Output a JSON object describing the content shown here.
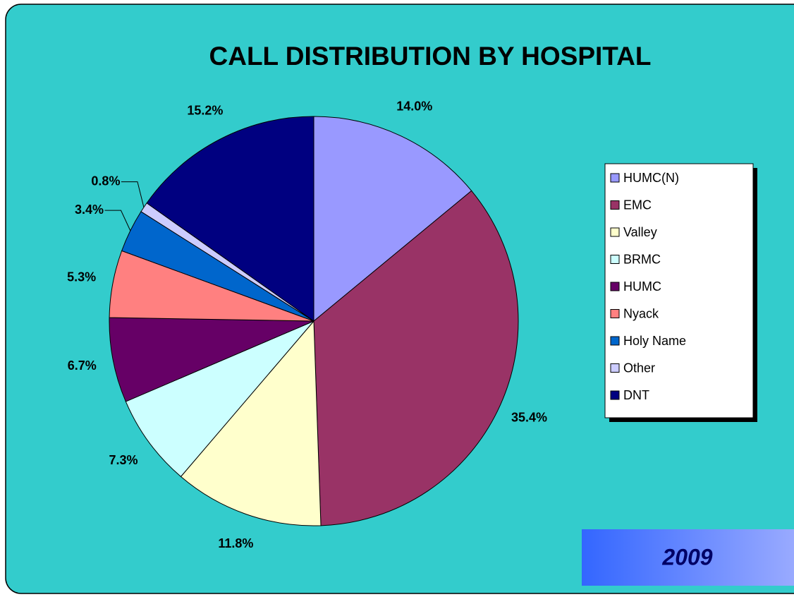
{
  "chart_data": {
    "type": "pie",
    "title": "CALL DISTRIBUTION BY HOSPITAL",
    "categories": [
      "HUMC(N)",
      "EMC",
      "Valley",
      "BRMC",
      "HUMC",
      "Nyack",
      "Holy Name",
      "Other",
      "DNT"
    ],
    "values": [
      14.0,
      35.4,
      11.8,
      7.3,
      6.7,
      5.3,
      3.4,
      0.8,
      15.2
    ],
    "value_labels": [
      "14.0%",
      "35.4%",
      "11.8%",
      "7.3%",
      "6.7%",
      "5.3%",
      "3.4%",
      "0.8%",
      "15.2%"
    ],
    "colors": [
      "#9999ff",
      "#993366",
      "#ffffcc",
      "#ccffff",
      "#660066",
      "#ff8080",
      "#0066cc",
      "#ccccff",
      "#000080"
    ],
    "legend": "right",
    "annotation": "2009"
  }
}
